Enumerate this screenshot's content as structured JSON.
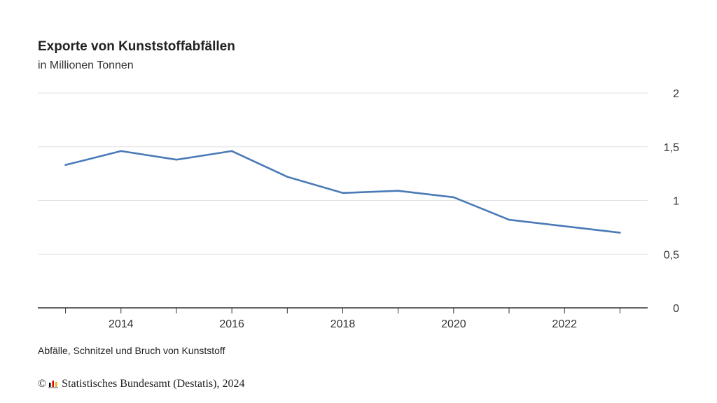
{
  "title": "Exporte von Kunststoffabfällen",
  "subtitle": "in Millionen Tonnen",
  "footnote": "Abfälle, Schnitzel und Bruch von Kunststoff",
  "source": {
    "copyright_symbol": "©",
    "text": "Statistisches Bundesamt (Destatis), 2024",
    "logo_icon": "destatis-logo-icon"
  },
  "chart_data": {
    "type": "line",
    "title": "Exporte von Kunststoffabfällen",
    "subtitle": "in Millionen Tonnen",
    "x": [
      2013,
      2014,
      2015,
      2016,
      2017,
      2018,
      2019,
      2020,
      2021,
      2022,
      2023
    ],
    "series": [
      {
        "values": [
          1.33,
          1.46,
          1.38,
          1.46,
          1.22,
          1.07,
          1.09,
          1.03,
          0.82,
          0.76,
          0.7
        ],
        "color": "#4a7ab7"
      }
    ],
    "x_tick_labels": [
      "2014",
      "2016",
      "2018",
      "2020",
      "2022"
    ],
    "x_tick_values": [
      2014,
      2016,
      2018,
      2020,
      2022
    ],
    "y_tick_labels": [
      "0",
      "0,5",
      "1",
      "1,5",
      "2"
    ],
    "y_tick_values": [
      0,
      0.5,
      1,
      1.5,
      2
    ],
    "ylim": [
      0,
      2
    ],
    "xlim": [
      2012.5,
      2023.5
    ],
    "y_axis_position": "right",
    "grid": "horizontal",
    "colors": {
      "line": "#4a7ab7",
      "grid": "#e2e2e2",
      "axis": "#333333"
    }
  }
}
